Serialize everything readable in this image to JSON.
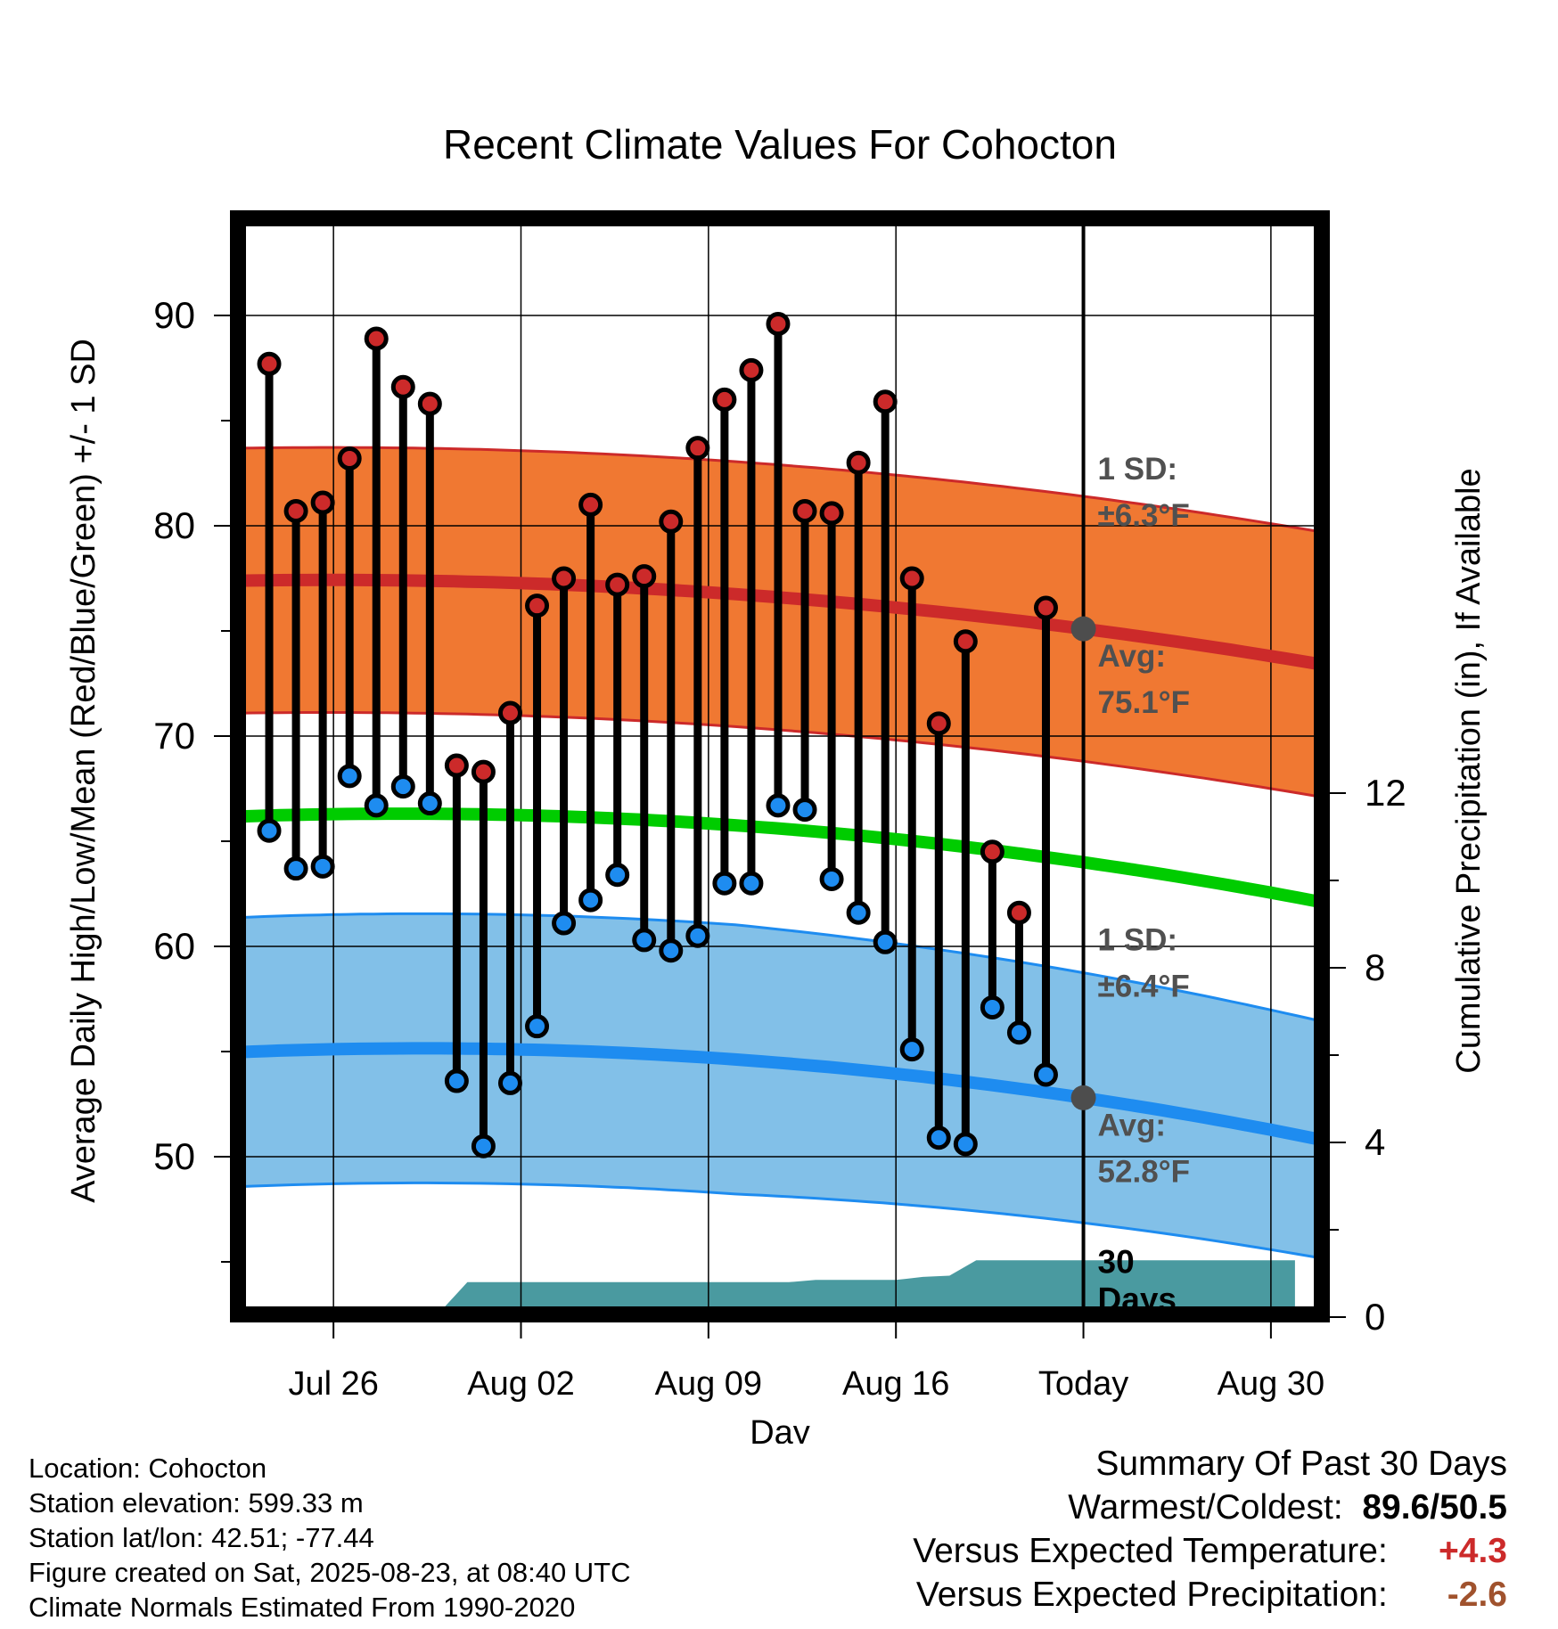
{
  "chart_data": {
    "type": "line",
    "title": "Recent Climate Values For Cohocton",
    "xlabel": "Day",
    "ylabel": "Average Daily High/Low/Mean (Red/Blue/Green) +/- 1 SD",
    "y2label": "Cumulative Precipitation (in), If Available",
    "ylim": [
      42,
      95
    ],
    "y2lim": [
      0,
      14
    ],
    "yticks": [
      50,
      60,
      70,
      80,
      90
    ],
    "y2ticks": [
      0,
      4,
      8,
      12
    ],
    "xticks": [
      {
        "day": 3,
        "label": "Jul 26"
      },
      {
        "day": 10,
        "label": "Aug 02"
      },
      {
        "day": 17,
        "label": "Aug 09"
      },
      {
        "day": 24,
        "label": "Aug 16"
      },
      {
        "day": 31,
        "label": "Today"
      },
      {
        "day": 38,
        "label": "Aug 30"
      }
    ],
    "today_day": 31,
    "start_date": "Jul 24",
    "normals": {
      "high_mean_start": 77.4,
      "high_mean_today": 75.1,
      "high_mean_end": 73.4,
      "high_sd": 6.3,
      "low_mean_start": 55.0,
      "low_mean_today": 52.8,
      "low_mean_end": 50.8,
      "low_sd": 6.4,
      "mean_start": 66.2,
      "mean_today": 64.0,
      "mean_end": 62.1
    },
    "daily_high": [
      87.7,
      80.7,
      81.1,
      83.2,
      88.9,
      86.6,
      85.8,
      68.6,
      68.3,
      71.1,
      76.2,
      77.5,
      81.0,
      77.2,
      77.6,
      80.2,
      83.7,
      86.0,
      87.4,
      89.6,
      80.7,
      80.6,
      83.0,
      85.9,
      77.5,
      70.6,
      74.5,
      64.5,
      61.6,
      76.1
    ],
    "daily_low": [
      65.5,
      63.7,
      63.8,
      68.1,
      66.7,
      67.6,
      66.8,
      53.6,
      50.5,
      53.5,
      56.2,
      61.1,
      62.2,
      63.4,
      60.3,
      59.8,
      60.5,
      63.0,
      63.0,
      66.7,
      66.5,
      63.2,
      61.6,
      60.2,
      55.1,
      50.9,
      50.6,
      57.1,
      55.9,
      53.9
    ],
    "precip_cumulative": {
      "days": [
        0,
        6.8,
        8,
        20,
        21,
        24,
        25,
        26,
        27,
        28,
        29.5,
        31,
        38.9
      ],
      "values": [
        0,
        0,
        0.8,
        0.8,
        0.85,
        0.85,
        0.92,
        0.95,
        1.3,
        1.3,
        1.3,
        1.3,
        1.3
      ]
    },
    "annotations": {
      "high_sd_label": "1 SD:",
      "high_sd_value": "±6.3°F",
      "high_avg_label": "Avg:",
      "high_avg_value": "75.1°F",
      "low_sd_label": "1 SD:",
      "low_sd_value": "±6.4°F",
      "low_avg_label": "Avg:",
      "low_avg_value": "52.8°F",
      "precip_period": "30",
      "precip_period_unit": "Days"
    },
    "colors": {
      "high_mean": "#cc2a2a",
      "high_band": "#f07832",
      "low_mean": "#1e8cf0",
      "low_band": "#82c0e8",
      "mean": "#00cc00",
      "precip": "#4a9aa0",
      "high_dot": "#cc2a2a",
      "low_dot": "#1e8cf0",
      "today_marker": "#4d4d4d",
      "annotation": "#505050"
    }
  },
  "footer": {
    "location": "Location: Cohocton",
    "elevation": "Station elevation: 599.33 m",
    "latlon": "Station lat/lon: 42.51; -77.44",
    "created": "Figure created on Sat, 2025-08-23, at 08:40 UTC",
    "normals": "Climate Normals Estimated From 1990-2020"
  },
  "summary": {
    "title": "Summary Of Past 30 Days",
    "warmest_coldest_label": "Warmest/Coldest:",
    "warmest_coldest_value": "89.6/50.5",
    "temp_label": "Versus Expected Temperature:",
    "temp_value": "+4.3",
    "temp_color": "#cc2a2a",
    "precip_label": "Versus Expected Precipitation:",
    "precip_value": "-2.6",
    "precip_color": "#a0522d"
  }
}
